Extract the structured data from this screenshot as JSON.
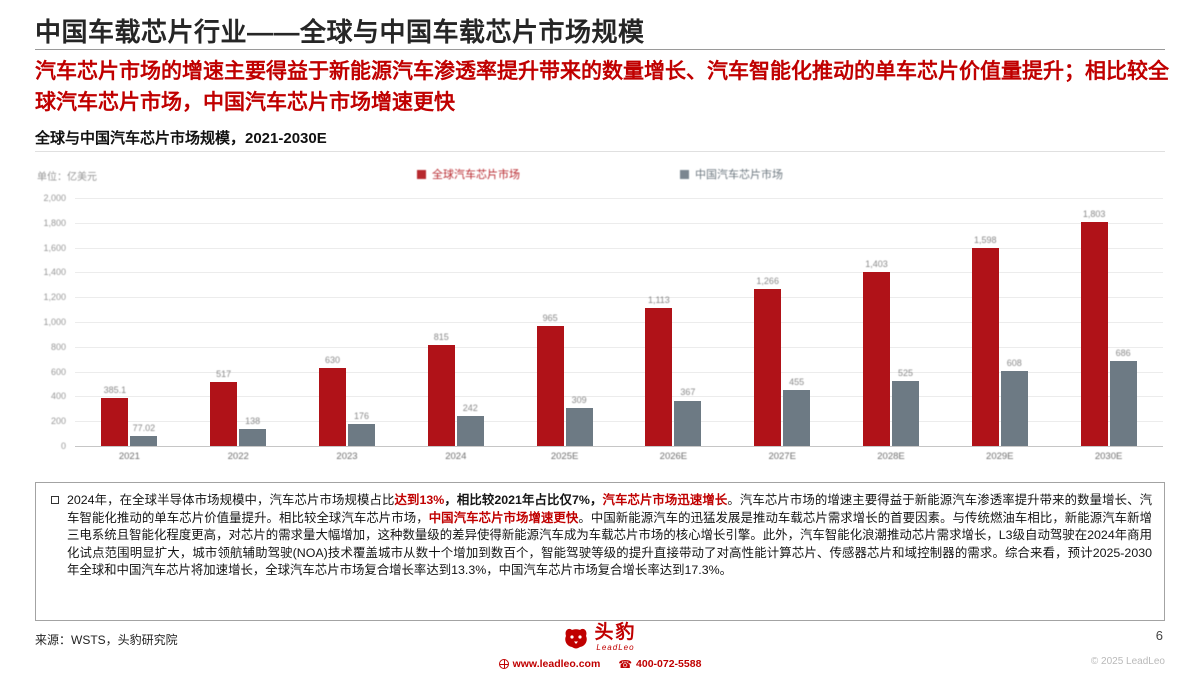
{
  "page": {
    "title": "中国车载芯片行业——全球与中国车载芯片市场规模",
    "subtitle": "汽车芯片市场的增速主要得益于新能源汽车渗透率提升带来的数量增长、汽车智能化推动的单车芯片价值量提升；相比较全球汽车芯片市场，中国汽车芯片市场增速更快",
    "page_number": "6"
  },
  "chart": {
    "title": "全球与中国汽车芯片市场规模，2021-2030E",
    "unit": "单位：亿美元"
  },
  "chart_data": {
    "type": "bar",
    "title": "全球与中国汽车芯片市场规模，2021-2030E",
    "ylabel": "亿美元",
    "xlabel": "",
    "ylim": [
      0,
      2000
    ],
    "ytick_step": 200,
    "grid": true,
    "legend_position": "top",
    "categories": [
      "2021",
      "2022",
      "2023",
      "2024",
      "2025E",
      "2026E",
      "2027E",
      "2028E",
      "2029E",
      "2030E"
    ],
    "series": [
      {
        "name": "全球汽车芯片市场",
        "color": "#b01218",
        "label_color": "#b01218",
        "values": [
          385.1,
          517,
          630,
          815,
          965,
          1113,
          1266,
          1403,
          1598,
          1803
        ],
        "labels": [
          "385.1",
          "517",
          "630",
          "815",
          "965",
          "1,113",
          "1,266",
          "1,403",
          "1,598",
          "1,803"
        ]
      },
      {
        "name": "中国汽车芯片市场",
        "color": "#6d7a84",
        "label_color": "#5f6b74",
        "values": [
          77.02,
          138,
          176,
          242,
          309,
          367,
          455,
          525,
          608,
          686
        ],
        "labels": [
          "77.02",
          "138",
          "176",
          "242",
          "309",
          "367",
          "455",
          "525",
          "608",
          "686"
        ]
      }
    ]
  },
  "summary": {
    "bullet_icon": "square-bullet",
    "segments": [
      {
        "text": "2024年，在全球半导体市场规模中，汽车芯片市场规模占比",
        "bold": false,
        "red": false
      },
      {
        "text": "达到13%",
        "bold": true,
        "red": true
      },
      {
        "text": "，相比较2021年占比仅7%，",
        "bold": true,
        "red": false
      },
      {
        "text": "汽车芯片市场迅速增长",
        "bold": true,
        "red": true
      },
      {
        "text": "。汽车芯片市场的增速主要得益于新能源汽车渗透率提升带来的数量增长、汽车智能化推动的单车芯片价值量提升。相比较全球汽车芯片市场，",
        "bold": false,
        "red": false
      },
      {
        "text": "中国汽车芯片市场增速更快",
        "bold": true,
        "red": true
      },
      {
        "text": "。中国新能源汽车的迅猛发展是推动车载芯片需求增长的首要因素。与传统燃油车相比，新能源汽车新增三电系统且智能化程度更高，对芯片的需求量大幅增加，这种数量级的差异使得新能源汽车成为车载芯片市场的核心增长引擎。此外，汽车智能化浪潮推动芯片需求增长，L3级自动驾驶在2024年商用化试点范围明显扩大，城市领航辅助驾驶(NOA)技术覆盖城市从数十个增加到数百个，智能驾驶等级的提升直接带动了对高性能计算芯片、传感器芯片和域控制器的需求。综合来看，预计2025-2030年全球和中国汽车芯片将加速增长，全球汽车芯片市场复合增长率达到13.3%，中国汽车芯片市场复合增长率达到17.3%。",
        "bold": false,
        "red": false
      }
    ]
  },
  "footer": {
    "source": "来源：WSTS，头豹研究院",
    "brand": "头豹",
    "brand_sub": "LeadLeo",
    "website": "www.leadleo.com",
    "phone": "400-072-5588",
    "copyright": "© 2025 LeadLeo"
  }
}
